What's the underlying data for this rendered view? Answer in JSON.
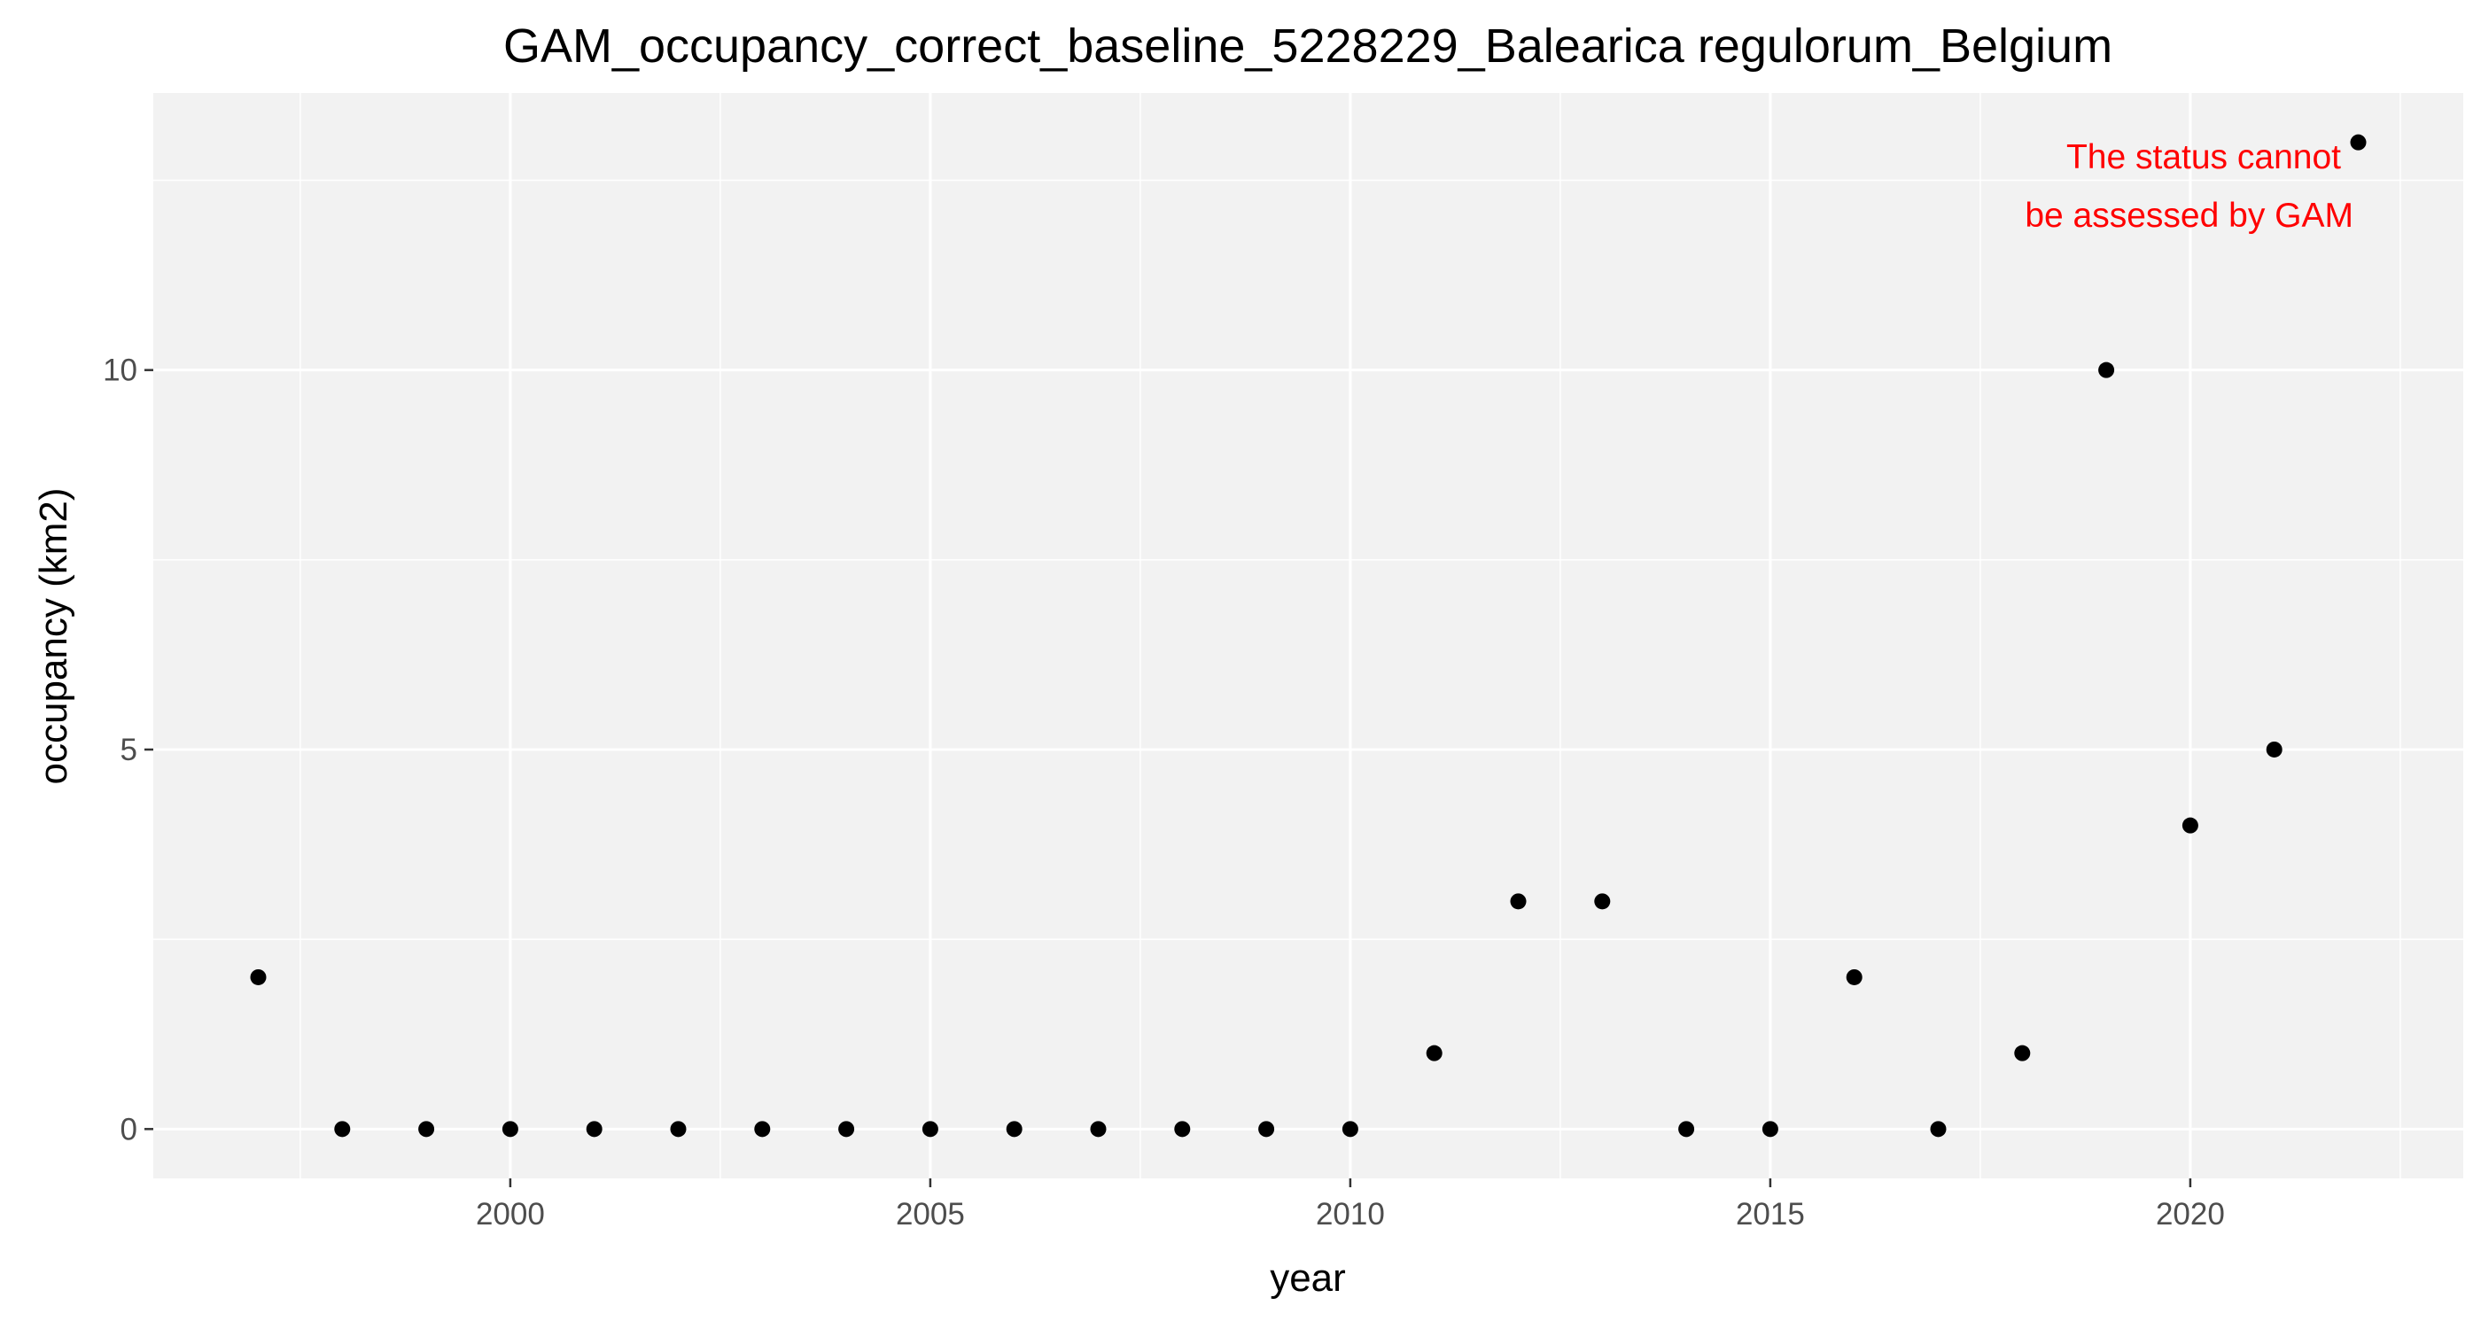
{
  "chart_data": {
    "type": "scatter",
    "title": "GAM_occupancy_correct_baseline_5228229_Balearica regulorum_Belgium",
    "xlabel": "year",
    "ylabel": "occupancy (km2)",
    "x": [
      1997,
      1998,
      1999,
      2000,
      2001,
      2002,
      2003,
      2004,
      2005,
      2006,
      2007,
      2008,
      2009,
      2010,
      2011,
      2012,
      2013,
      2014,
      2015,
      2016,
      2017,
      2018,
      2019,
      2020,
      2021,
      2022
    ],
    "y": [
      2,
      0,
      0,
      0,
      0,
      0,
      0,
      0,
      0,
      0,
      0,
      0,
      0,
      0,
      1,
      3,
      3,
      0,
      0,
      2,
      0,
      1,
      10,
      4,
      5,
      13
    ],
    "xlim": [
      1995.75,
      2023.25
    ],
    "ylim": [
      -0.65,
      13.65
    ],
    "x_ticks": [
      2000,
      2005,
      2010,
      2015,
      2020
    ],
    "y_ticks": [
      0,
      5,
      10
    ],
    "grid": true,
    "panel_background": "#f2f2f2",
    "grid_color": "#ffffff",
    "point_color": "#000000",
    "annotation": {
      "lines": [
        "The status cannot",
        "be assessed by GAM"
      ],
      "color": "#ff0000",
      "position": "top-right"
    }
  }
}
